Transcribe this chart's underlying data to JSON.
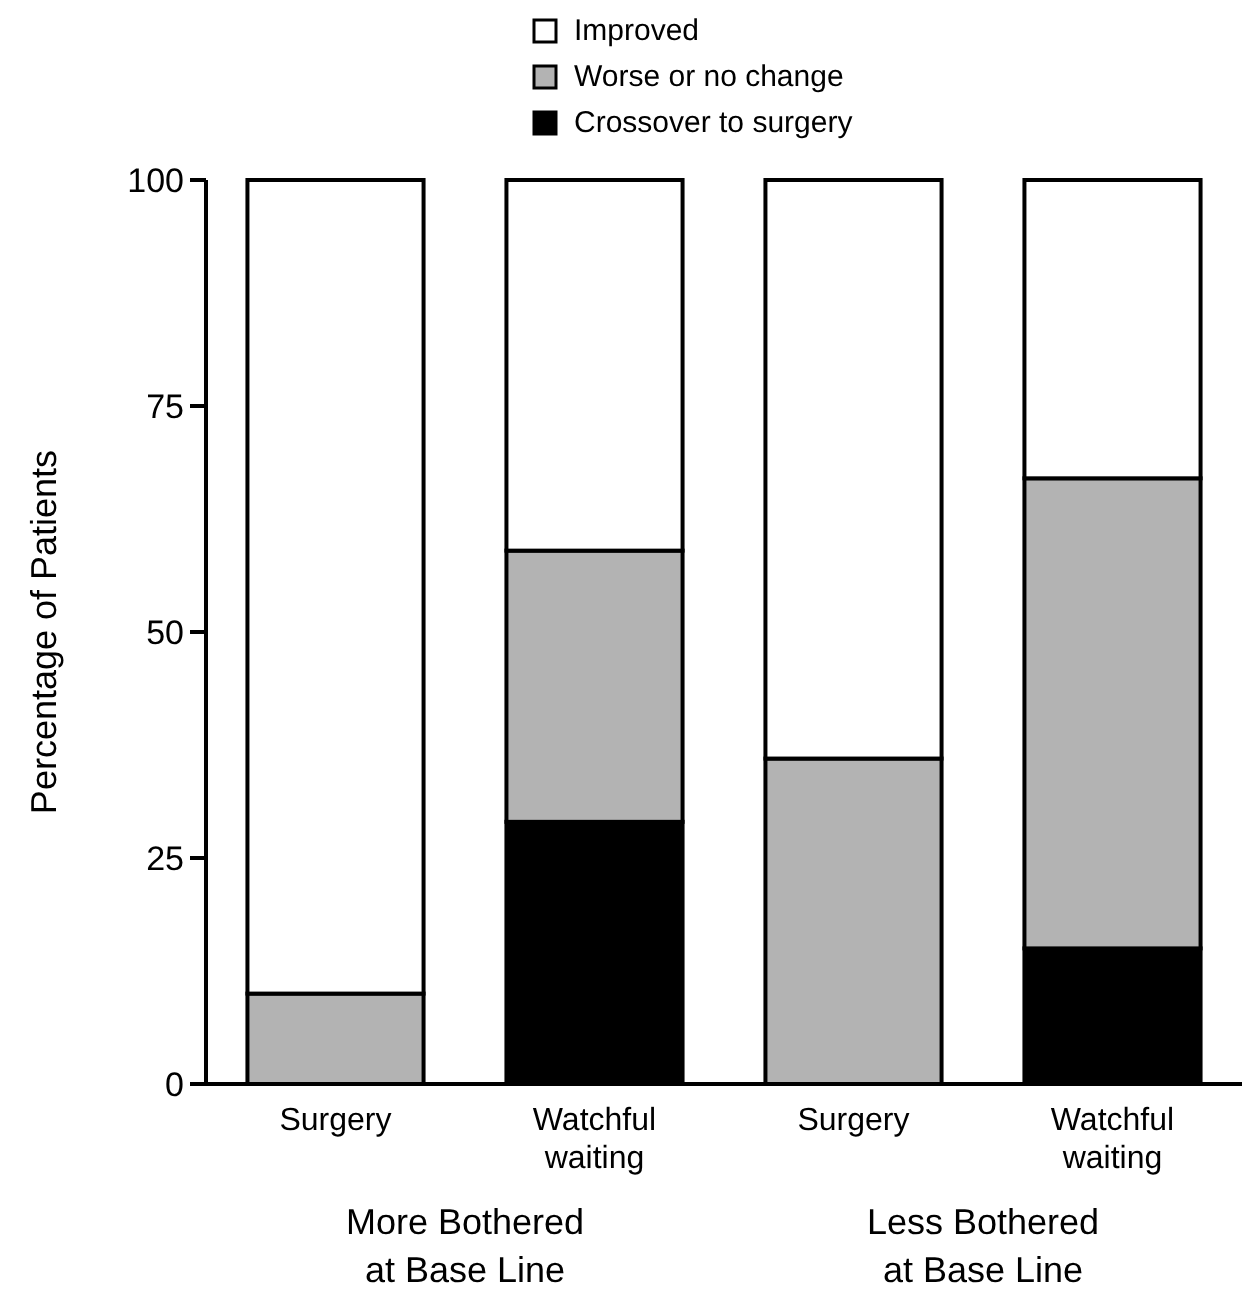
{
  "chart_data": {
    "type": "bar",
    "stacked": true,
    "ylabel": "Percentage of Patients",
    "categories": [
      "Surgery",
      "Watchful\nwaiting",
      "Surgery",
      "Watchful\nwaiting"
    ],
    "series": [
      {
        "name": "Crossover to surgery",
        "color": "#000000",
        "values": [
          0,
          29,
          0,
          15
        ]
      },
      {
        "name": "Worse or no change",
        "color": "#b3b3b3",
        "values": [
          10,
          30,
          36,
          52
        ]
      },
      {
        "name": "Improved",
        "color": "#ffffff",
        "values": [
          90,
          41,
          64,
          33
        ]
      }
    ],
    "ylim": [
      0,
      100
    ],
    "yticks": [
      0,
      25,
      50,
      75,
      100
    ],
    "grid": false,
    "legend": "top",
    "annotations": [
      "More Bothered\nat Base Line",
      "Less Bothered\nat Base Line"
    ]
  }
}
